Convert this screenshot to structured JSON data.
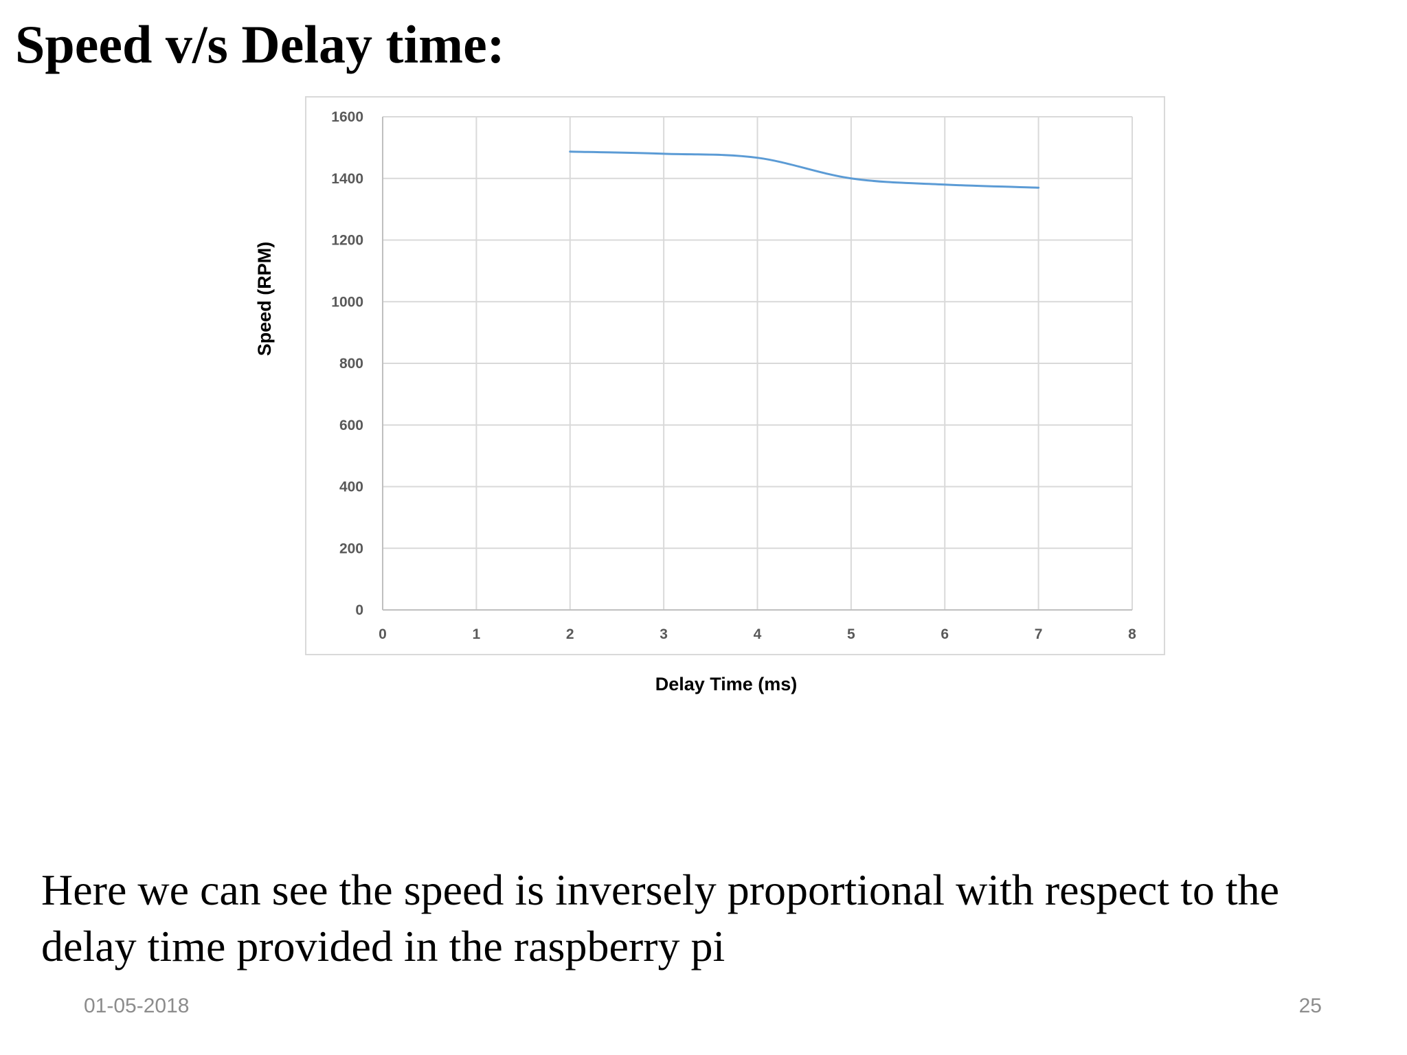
{
  "slide": {
    "title": "Speed v/s Delay time:",
    "body": "Here we can see the speed is inversely proportional with respect to the delay time provided in the raspberry pi",
    "footer_date": "01-05-2018",
    "page_number": "25"
  },
  "colors": {
    "series_line": "#5b9bd5",
    "gridline": "#d9d9d9",
    "axis_line": "#bfbfbf"
  },
  "chart_data": {
    "type": "line",
    "title": "",
    "xlabel": "Delay Time (ms)",
    "ylabel": "Speed (RPM)",
    "xlim": [
      0,
      8
    ],
    "ylim": [
      0,
      1600
    ],
    "x_ticks": [
      "0",
      "1",
      "2",
      "3",
      "4",
      "5",
      "6",
      "7",
      "8"
    ],
    "y_ticks": [
      "0",
      "200",
      "400",
      "600",
      "800",
      "1000",
      "1200",
      "1400",
      "1600"
    ],
    "grid": true,
    "legend": "none",
    "series": [
      {
        "x": [
          2,
          3,
          4,
          5,
          6,
          7
        ],
        "values": [
          1487,
          1480,
          1467,
          1400,
          1380,
          1370
        ]
      }
    ]
  }
}
